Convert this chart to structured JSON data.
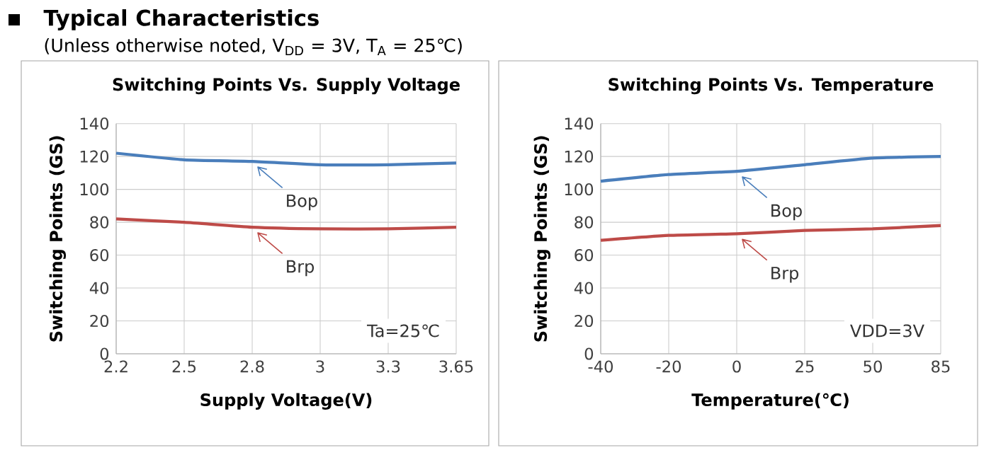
{
  "chart_data": [
    {
      "type": "line",
      "title": "Switching Points Vs. Supply Voltage",
      "xlabel": "Supply Voltage(V)",
      "ylabel": "Switching Points (GS)",
      "categories": [
        "2.2",
        "2.5",
        "2.8",
        "3",
        "3.3",
        "3.65"
      ],
      "series": [
        {
          "name": "Bop",
          "color": "#4a7ebb",
          "values": [
            122,
            118,
            117,
            115,
            115,
            116
          ]
        },
        {
          "name": "Brp",
          "color": "#be4b48",
          "values": [
            82,
            80,
            77,
            76,
            76,
            77
          ]
        }
      ],
      "ylim": [
        0,
        140
      ],
      "yticks": [
        0,
        20,
        40,
        60,
        80,
        100,
        120,
        140
      ],
      "grid": true,
      "legend": "center",
      "annotations": [
        "Typical Characteristics",
        "(Unless otherwise noted, V$_{DD}$ = 3V, T$_{A}$ = 25℃)",
        "Ta=25℃"
      ]
    },
    {
      "type": "line",
      "title": "Switching Points Vs. Temperature",
      "xlabel": "Temperature(℃)",
      "ylabel": "Switching Points (GS)",
      "categories": [
        "-40",
        "-20",
        "0",
        "25",
        "50",
        "85"
      ],
      "series": [
        {
          "name": "Bop",
          "color": "#4a7ebb",
          "values": [
            105,
            109,
            111,
            115,
            119,
            120
          ]
        },
        {
          "name": "Brp",
          "color": "#be4b48",
          "values": [
            69,
            72,
            73,
            75,
            76,
            78
          ]
        }
      ],
      "ylim": [
        0,
        140
      ],
      "yticks": [
        0,
        20,
        40,
        60,
        80,
        100,
        120,
        140
      ],
      "grid": true,
      "legend": "center",
      "annotations": [
        "VDD=3V"
      ]
    }
  ]
}
